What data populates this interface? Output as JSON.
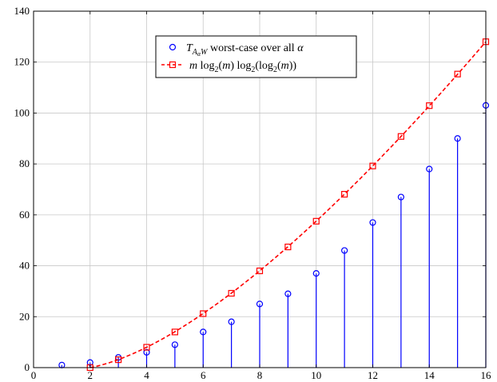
{
  "chart_data": {
    "type": "line",
    "title": "",
    "xlabel": "",
    "ylabel": "",
    "xlim": [
      0,
      16
    ],
    "ylim": [
      0,
      140
    ],
    "xticks": [
      0,
      2,
      4,
      6,
      8,
      10,
      12,
      14,
      16
    ],
    "yticks": [
      0,
      20,
      40,
      60,
      80,
      100,
      120,
      140
    ],
    "grid": true,
    "legend_position": "top-center",
    "series": [
      {
        "name": "T_{A_α W} worst-case over all α",
        "style": "stem",
        "marker": "circle",
        "color": "#0000ff",
        "x": [
          1,
          2,
          3,
          4,
          5,
          6,
          7,
          8,
          9,
          10,
          11,
          12,
          13,
          14,
          15,
          16
        ],
        "y": [
          1,
          2,
          4,
          6,
          9,
          14,
          18,
          25,
          29,
          37,
          46,
          57,
          67,
          78,
          90,
          103
        ]
      },
      {
        "name": "m log2(m) log2(log2(m))",
        "style": "dashed-line",
        "marker": "square",
        "color": "#ff0000",
        "x": [
          2,
          3,
          4,
          5,
          6,
          7,
          8,
          9,
          10,
          11,
          12,
          13,
          14,
          15,
          16
        ],
        "y": [
          0,
          3.1,
          8,
          14,
          21.2,
          29.2,
          38,
          47.4,
          57.5,
          68.1,
          79.2,
          90.8,
          102.9,
          115.3,
          128
        ]
      }
    ]
  }
}
